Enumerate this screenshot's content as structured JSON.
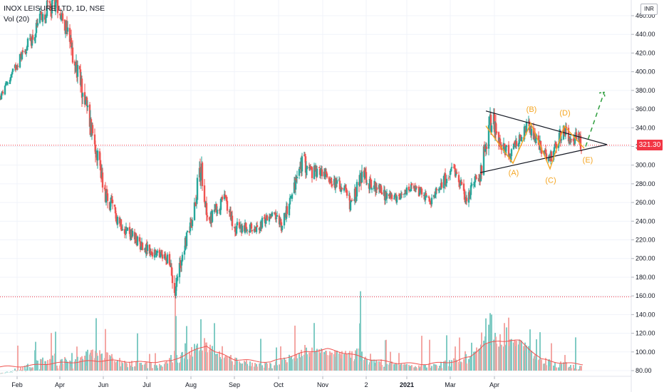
{
  "legend": {
    "title": "INOX LEISURE LTD, 1D, NSE",
    "indicator": "Vol (20)"
  },
  "currency": "INR",
  "last_price_label": "321.30",
  "colors": {
    "up": "#26a69a",
    "down": "#ef5350",
    "up_vol": "#80cbc4",
    "down_vol": "#f4a7a4",
    "vol_ma": "#ef5350",
    "wave": "#f5a623",
    "triangle": "#131722",
    "projection": "#2e9e3e",
    "last_price": "#f23645",
    "level_line": "#f23645"
  },
  "chart_data": {
    "type": "candlestick",
    "title": "INOX LEISURE LTD, 1D, NSE",
    "indicator": "Vol (20)",
    "y_axis": {
      "position": "right",
      "ticks": [
        80,
        100,
        120,
        140,
        160,
        180,
        200,
        220,
        240,
        260,
        280,
        300,
        320,
        340,
        360,
        380,
        400,
        420,
        440,
        460
      ],
      "tick_labels": [
        "80.00",
        "100.00",
        "120.00",
        "140.00",
        "160.00",
        "180.00",
        "200.00",
        "220.00",
        "240.00",
        "260.00",
        "280.00",
        "300.00",
        "320.00",
        "340.00",
        "360.00",
        "380.00",
        "400.00",
        "420.00",
        "440.00",
        "460.00"
      ],
      "range": [
        73,
        468
      ]
    },
    "x_axis": {
      "labels": [
        "Feb",
        "Apr",
        "Jun",
        "Jul",
        "Aug",
        "Sep",
        "Oct",
        "Nov",
        "2",
        "2021",
        "Mar",
        "Apr"
      ],
      "label_days": [
        24,
        84,
        145,
        206,
        268,
        329,
        391,
        453,
        514,
        571,
        632,
        694
      ]
    },
    "last_price": 321.3,
    "horizontal_levels": [
      321.3,
      159
    ],
    "anchors": [
      [
        0,
        372,
        0
      ],
      [
        30,
        418,
        0.3
      ],
      [
        50,
        442,
        0.6
      ],
      [
        60,
        462,
        0.7
      ],
      [
        78,
        476,
        0.8
      ],
      [
        90,
        455,
        0.6
      ],
      [
        100,
        425,
        0.9
      ],
      [
        112,
        392,
        1.0
      ],
      [
        122,
        360,
        1.0
      ],
      [
        135,
        320,
        0.9
      ],
      [
        150,
        262,
        0.8
      ],
      [
        170,
        238,
        0.5
      ],
      [
        190,
        220,
        0.4
      ],
      [
        215,
        205,
        0.3
      ],
      [
        235,
        200,
        0.4
      ],
      [
        246,
        170,
        1.0
      ],
      [
        258,
        212,
        0.5
      ],
      [
        270,
        245,
        0.6
      ],
      [
        282,
        300,
        1.0
      ],
      [
        292,
        240,
        0.6
      ],
      [
        302,
        250,
        0.5
      ],
      [
        315,
        265,
        0.4
      ],
      [
        330,
        232,
        0.5
      ],
      [
        350,
        232,
        0.3
      ],
      [
        365,
        235,
        0.3
      ],
      [
        380,
        250,
        0.3
      ],
      [
        395,
        235,
        0.3
      ],
      [
        410,
        270,
        0.5
      ],
      [
        425,
        305,
        0.8
      ],
      [
        438,
        292,
        0.5
      ],
      [
        452,
        293,
        0.4
      ],
      [
        468,
        282,
        0.4
      ],
      [
        482,
        275,
        0.4
      ],
      [
        494,
        255,
        0.5
      ],
      [
        506,
        290,
        0.8
      ],
      [
        520,
        280,
        0.4
      ],
      [
        540,
        268,
        0.4
      ],
      [
        560,
        262,
        0.3
      ],
      [
        575,
        275,
        0.3
      ],
      [
        592,
        270,
        0.3
      ],
      [
        606,
        260,
        0.3
      ],
      [
        620,
        282,
        0.4
      ],
      [
        636,
        292,
        0.5
      ],
      [
        648,
        278,
        0.4
      ],
      [
        656,
        260,
        0.6
      ],
      [
        662,
        282,
        0.5
      ],
      [
        672,
        280,
        0.5
      ],
      [
        682,
        325,
        0.9
      ],
      [
        690,
        350,
        1.0
      ],
      [
        698,
        338,
        0.8
      ],
      [
        706,
        318,
        0.6
      ],
      [
        714,
        310,
        0.5
      ],
      [
        722,
        318,
        0.4
      ],
      [
        730,
        330,
        0.4
      ],
      [
        742,
        342,
        0.5
      ],
      [
        752,
        330,
        0.4
      ],
      [
        760,
        318,
        0.4
      ],
      [
        770,
        305,
        0.5
      ],
      [
        780,
        318,
        0.4
      ],
      [
        790,
        338,
        0.5
      ],
      [
        800,
        328,
        0.4
      ],
      [
        810,
        330,
        0.4
      ],
      [
        818,
        320,
        0.6
      ]
    ],
    "volume_ma_points": [
      [
        0,
        84
      ],
      [
        40,
        85
      ],
      [
        60,
        87
      ],
      [
        100,
        89
      ],
      [
        150,
        91
      ],
      [
        200,
        89
      ],
      [
        240,
        90
      ],
      [
        262,
        98
      ],
      [
        290,
        107
      ],
      [
        302,
        100
      ],
      [
        330,
        92
      ],
      [
        380,
        89
      ],
      [
        405,
        95
      ],
      [
        430,
        100
      ],
      [
        460,
        103
      ],
      [
        490,
        98
      ],
      [
        520,
        92
      ],
      [
        560,
        88
      ],
      [
        600,
        87
      ],
      [
        640,
        90
      ],
      [
        660,
        95
      ],
      [
        680,
        108
      ],
      [
        700,
        112
      ],
      [
        730,
        112
      ],
      [
        742,
        104
      ],
      [
        760,
        92
      ],
      [
        790,
        88
      ],
      [
        818,
        87
      ]
    ],
    "volume_spikes": [
      [
        246,
        160
      ],
      [
        282,
        135
      ],
      [
        425,
        158
      ],
      [
        506,
        165
      ],
      [
        636,
        155
      ],
      [
        684,
        176
      ],
      [
        690,
        140
      ],
      [
        720,
        118
      ]
    ],
    "annotations": {
      "triangle_upper": [
        [
          682,
          358
        ],
        [
          852,
          322
        ]
      ],
      "triangle_lower": [
        [
          674,
          292
        ],
        [
          852,
          322
        ]
      ],
      "wave_path": [
        [
          682,
          342
        ],
        [
          720,
          302
        ],
        [
          745,
          345
        ],
        [
          772,
          296
        ],
        [
          792,
          342
        ],
        [
          820,
          318
        ]
      ],
      "projection_path": [
        [
          822,
          320
        ],
        [
          848,
          378
        ]
      ],
      "wave_labels": [
        {
          "label": "(A)",
          "x": 721,
          "y": 289
        },
        {
          "label": "(B)",
          "x": 746,
          "y": 357
        },
        {
          "label": "(C)",
          "x": 773,
          "y": 281
        },
        {
          "label": "(D)",
          "x": 793,
          "y": 353
        },
        {
          "label": "(E)",
          "x": 825,
          "y": 303
        }
      ]
    }
  }
}
